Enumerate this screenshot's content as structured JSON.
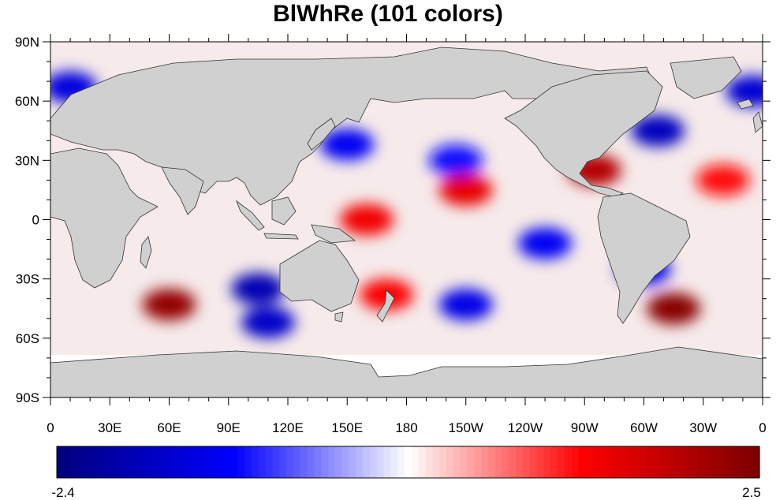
{
  "title": "BlWhRe (101 colors)",
  "map": {
    "projection": "cylindrical-equidistant",
    "longitude_range": [
      0,
      360
    ],
    "latitude_range": [
      -90,
      90
    ],
    "land_color": "#d0d0d0",
    "missing_color": "#ffffff",
    "lat_labels": [
      {
        "lat": 90,
        "text": "90N"
      },
      {
        "lat": 60,
        "text": "60N"
      },
      {
        "lat": 30,
        "text": "30N"
      },
      {
        "lat": 0,
        "text": "0"
      },
      {
        "lat": -30,
        "text": "30S"
      },
      {
        "lat": -60,
        "text": "60S"
      },
      {
        "lat": -90,
        "text": "90S"
      }
    ],
    "lon_labels": [
      {
        "lon": 0,
        "text": "0"
      },
      {
        "lon": 30,
        "text": "30E"
      },
      {
        "lon": 60,
        "text": "60E"
      },
      {
        "lon": 90,
        "text": "90E"
      },
      {
        "lon": 120,
        "text": "120E"
      },
      {
        "lon": 150,
        "text": "150E"
      },
      {
        "lon": 180,
        "text": "180"
      },
      {
        "lon": 210,
        "text": "150W"
      },
      {
        "lon": 240,
        "text": "120W"
      },
      {
        "lon": 270,
        "text": "90W"
      },
      {
        "lon": 300,
        "text": "60W"
      },
      {
        "lon": 330,
        "text": "30W"
      },
      {
        "lon": 360,
        "text": "0"
      }
    ]
  },
  "colorbar": {
    "min_label": "-2.4",
    "max_label": "2.5",
    "min": -2.4,
    "max": 2.5,
    "n_colors": 101,
    "colors": {
      "low": "#00007f",
      "mid_low": "#0000ff",
      "center": "#ffffff",
      "mid_high": "#ff0000",
      "high": "#7f0000"
    }
  },
  "anomaly_features": [
    {
      "lon": 60,
      "lat": -43,
      "value": 2.3
    },
    {
      "lon": 315,
      "lat": -45,
      "value": 2.4
    },
    {
      "lon": 105,
      "lat": -35,
      "value": -1.9
    },
    {
      "lon": 110,
      "lat": -52,
      "value": -1.7
    },
    {
      "lon": 210,
      "lat": -43,
      "value": -1.4
    },
    {
      "lon": 250,
      "lat": -12,
      "value": -1.3
    },
    {
      "lon": 205,
      "lat": 30,
      "value": -1.1
    },
    {
      "lon": 160,
      "lat": 0,
      "value": 1.4
    },
    {
      "lon": 210,
      "lat": 15,
      "value": 1.5
    },
    {
      "lon": 275,
      "lat": 25,
      "value": 2.0
    },
    {
      "lon": 307,
      "lat": 45,
      "value": -1.8
    },
    {
      "lon": 355,
      "lat": 65,
      "value": -1.6
    },
    {
      "lon": 10,
      "lat": 67,
      "value": -1.5
    },
    {
      "lon": 150,
      "lat": 38,
      "value": -1.3
    },
    {
      "lon": 170,
      "lat": -38,
      "value": 1.3
    },
    {
      "lon": 300,
      "lat": -25,
      "value": -1.4
    },
    {
      "lon": 340,
      "lat": 20,
      "value": 1.2
    }
  ]
}
